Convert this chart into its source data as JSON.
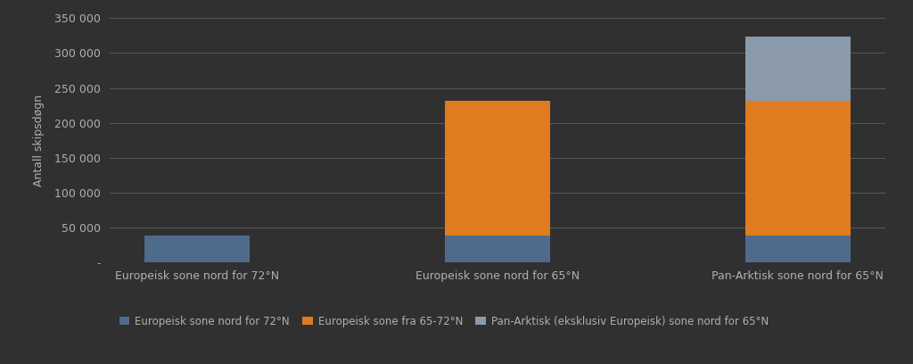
{
  "categories": [
    "Europeisk sone nord for 72°N",
    "Europeisk sone nord for 65°N",
    "Pan-Arktisk sone nord for 65°N"
  ],
  "series": [
    {
      "label": "Europeisk sone nord for 72°N",
      "color": "#4e6b8c",
      "values": [
        38000,
        38000,
        38000
      ]
    },
    {
      "label": "Europeisk sone fra 65-72°N",
      "color": "#e07b20",
      "values": [
        0,
        193000,
        193000
      ]
    },
    {
      "label": "Pan-Arktisk (eksklusiv Europeisk) sone nord for 65°N",
      "color": "#8a9aaa",
      "values": [
        0,
        0,
        93000
      ]
    }
  ],
  "ylabel": "Antall skipsdøgn",
  "ylim": [
    0,
    350000
  ],
  "yticks": [
    0,
    50000,
    100000,
    150000,
    200000,
    250000,
    300000,
    350000
  ],
  "ytick_labels": [
    "-",
    "50 000",
    "100 000",
    "150 000",
    "200 000",
    "250 000",
    "300 000",
    "350 000"
  ],
  "background_color": "#303030",
  "axes_color": "#303030",
  "text_color": "#b0b0b0",
  "grid_color": "#606060",
  "bar_width": 0.35
}
